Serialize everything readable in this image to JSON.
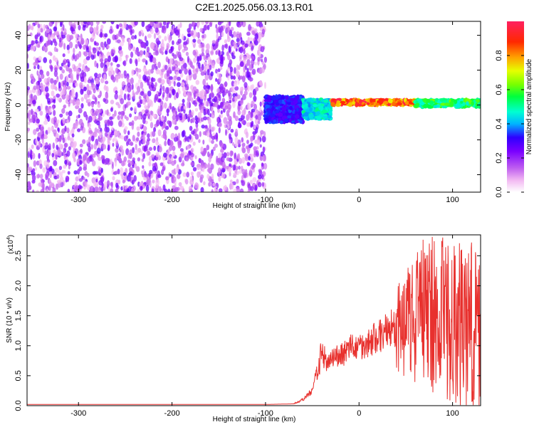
{
  "title": "C2E1.2025.056.03.13.R01",
  "chart_data": [
    {
      "type": "heatmap",
      "xlabel": "Height of straight line (km)",
      "ylabel": "Frequency (Hz)",
      "xlim": [
        -355,
        130
      ],
      "ylim": [
        -50,
        48
      ],
      "xticks": [
        -300,
        -200,
        -100,
        0,
        100
      ],
      "yticks": [
        -40,
        -20,
        0,
        20,
        40
      ],
      "colorbar": {
        "label": "Normalized spectral amplitude",
        "range": [
          0,
          1
        ],
        "ticks": [
          0.0,
          0.2,
          0.4,
          0.6,
          0.8
        ]
      },
      "features": [
        {
          "x": [
            -355,
            -100
          ],
          "y": [
            -50,
            48
          ],
          "amplitude": 0.15
        },
        {
          "x": [
            -100,
            -60
          ],
          "y": [
            -10,
            5
          ],
          "amplitude": 0.35
        },
        {
          "x": [
            -60,
            -30
          ],
          "y": [
            -8,
            3
          ],
          "amplitude": 0.5
        },
        {
          "x": [
            -30,
            60
          ],
          "y": [
            0,
            3
          ],
          "amplitude": 0.95
        },
        {
          "x": [
            60,
            130
          ],
          "y": [
            -1,
            3
          ],
          "amplitude": 0.6
        }
      ]
    },
    {
      "type": "line",
      "xlabel": "Height of straight line (km)",
      "ylabel": "SNR (10 * v/v)",
      "yscale_label": "(x10",
      "yscale_exp": "4",
      "yscale_close": ")",
      "xlim": [
        -355,
        130
      ],
      "ylim": [
        0,
        2.85
      ],
      "xticks": [
        -300,
        -200,
        -100,
        0,
        100
      ],
      "yticks": [
        0.0,
        0.5,
        1.0,
        1.5,
        2.0,
        2.5
      ],
      "color": "#e8312e",
      "series": [
        {
          "x": [
            -355,
            -100,
            -70,
            -60,
            -50,
            -45,
            -40,
            -35,
            -30,
            -20,
            -10,
            0,
            10,
            20,
            30,
            35,
            40,
            50,
            60,
            70,
            80,
            90,
            100,
            110,
            120,
            125,
            130
          ],
          "y": [
            0.02,
            0.02,
            0.03,
            0.1,
            0.25,
            0.55,
            0.8,
            0.7,
            0.75,
            0.85,
            0.95,
            1.0,
            1.05,
            1.15,
            1.25,
            1.3,
            1.25,
            1.35,
            1.45,
            1.5,
            1.55,
            1.5,
            1.4,
            1.35,
            1.3,
            1.25,
            1.2
          ]
        }
      ]
    }
  ]
}
